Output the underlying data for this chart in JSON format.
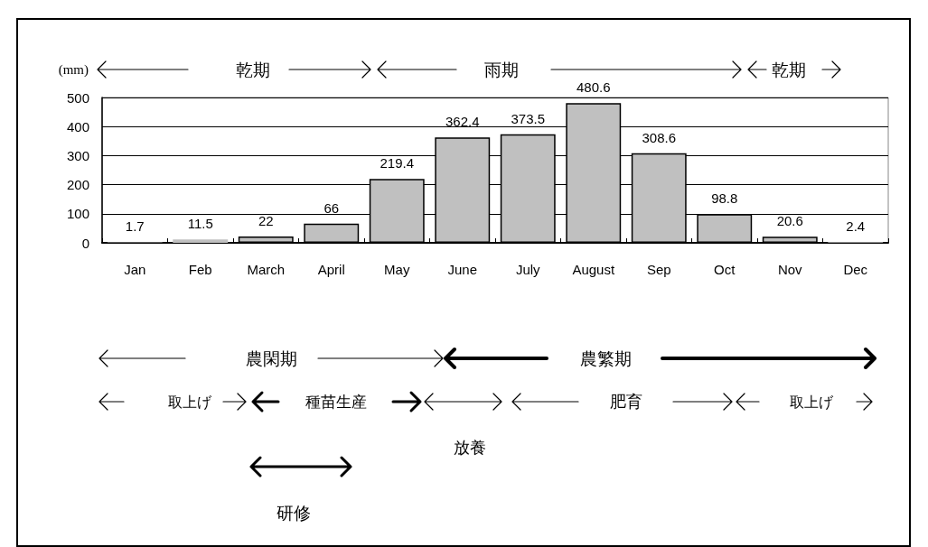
{
  "chart_data": {
    "type": "bar",
    "ylabel": "(mm)",
    "categories": [
      "Jan",
      "Feb",
      "March",
      "April",
      "May",
      "June",
      "July",
      "August",
      "Sep",
      "Oct",
      "Nov",
      "Dec"
    ],
    "values": [
      1.7,
      11.5,
      22,
      66,
      219.4,
      362.4,
      373.5,
      480.6,
      308.6,
      98.8,
      20.6,
      2.4
    ],
    "color": "#c0c0c0",
    "ylim": [
      0,
      500
    ],
    "yticks": [
      0,
      100,
      200,
      300,
      400,
      500
    ],
    "grid": "y",
    "data_labels": true,
    "annotations": [
      "乾期",
      "雨期",
      "乾期",
      "農閑期",
      "農繁期",
      "取上げ",
      "種苗生産",
      "放養",
      "肥育",
      "取上げ",
      "研修"
    ]
  }
}
